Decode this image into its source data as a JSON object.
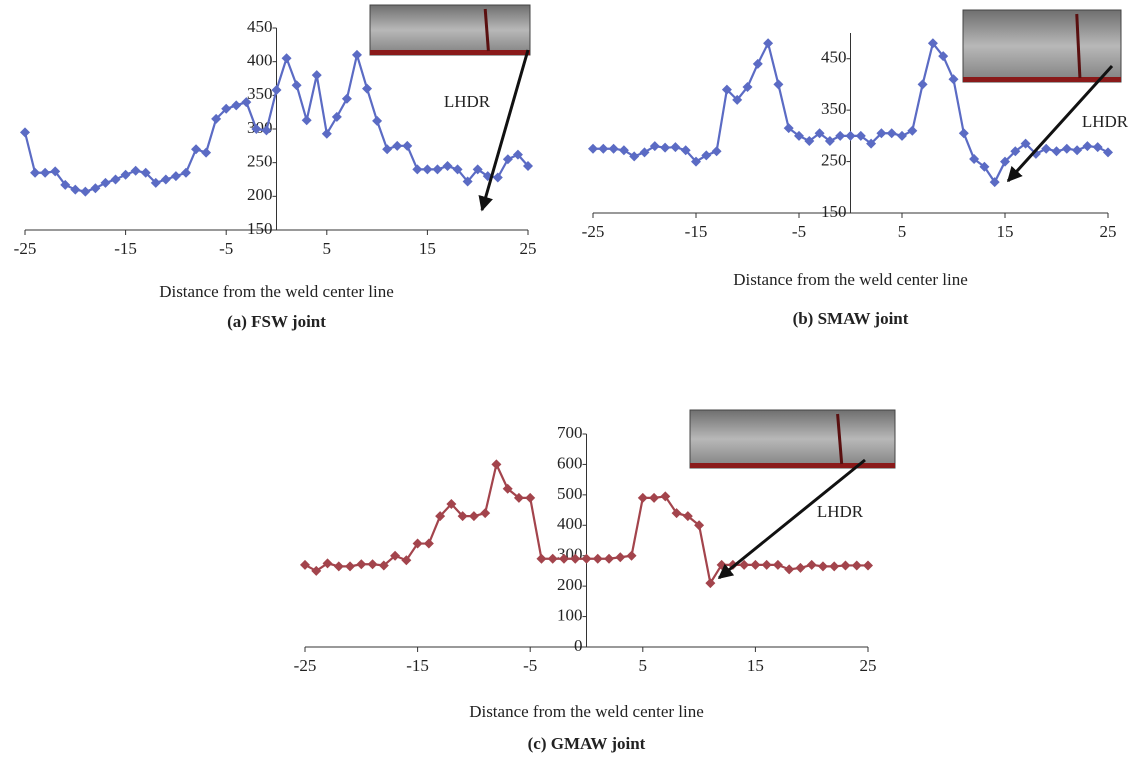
{
  "chart_data": [
    {
      "type": "line",
      "caption": "(a)  FSW joint",
      "xlabel": "Distance from the weld center line",
      "annotation": "LHDR",
      "color": "#5b6bc4",
      "x": [
        -25,
        -24,
        -23,
        -22,
        -21,
        -20,
        -19,
        -18,
        -17,
        -16,
        -15,
        -14,
        -13,
        -12,
        -11,
        -10,
        -9,
        -8,
        -7,
        -6,
        -5,
        -4,
        -3,
        -2,
        -1,
        0,
        1,
        2,
        3,
        4,
        5,
        6,
        7,
        8,
        9,
        10,
        11,
        12,
        13,
        14,
        15,
        16,
        17,
        18,
        19,
        20,
        21,
        22,
        23,
        24,
        25
      ],
      "values": [
        295,
        235,
        235,
        237,
        217,
        210,
        207,
        212,
        220,
        225,
        232,
        238,
        235,
        220,
        225,
        230,
        235,
        270,
        265,
        315,
        330,
        335,
        340,
        300,
        298,
        358,
        405,
        365,
        313,
        380,
        293,
        318,
        345,
        410,
        360,
        312,
        270,
        275,
        275,
        240,
        240,
        240,
        245,
        240,
        222,
        240,
        230,
        228,
        255,
        262,
        245
      ],
      "xlim": [
        -25,
        25
      ],
      "ylim": [
        150,
        450
      ],
      "xticks": [
        -25,
        -15,
        -5,
        5,
        15,
        25
      ],
      "yticks": [
        150,
        200,
        250,
        300,
        350,
        400,
        450
      ]
    },
    {
      "type": "line",
      "caption": "(b)  SMAW joint",
      "xlabel": "Distance from the weld center line",
      "annotation": "LHDR",
      "color": "#5b6bc4",
      "x": [
        -25,
        -24,
        -23,
        -22,
        -21,
        -20,
        -19,
        -18,
        -17,
        -16,
        -15,
        -14,
        -13,
        -12,
        -11,
        -10,
        -9,
        -8,
        -7,
        -6,
        -5,
        -4,
        -3,
        -2,
        -1,
        0,
        1,
        2,
        3,
        4,
        5,
        6,
        7,
        8,
        9,
        10,
        11,
        12,
        13,
        14,
        15,
        16,
        17,
        18,
        19,
        20,
        21,
        22,
        23,
        24,
        25
      ],
      "values": [
        275,
        275,
        275,
        272,
        260,
        268,
        280,
        277,
        278,
        272,
        250,
        262,
        270,
        390,
        370,
        395,
        440,
        480,
        400,
        315,
        300,
        290,
        305,
        290,
        300,
        300,
        300,
        285,
        305,
        305,
        300,
        310,
        400,
        480,
        455,
        410,
        305,
        255,
        240,
        210,
        250,
        270,
        285,
        265,
        275,
        270,
        275,
        272,
        280,
        278,
        268
      ],
      "xlim": [
        -25,
        25
      ],
      "ylim": [
        150,
        500
      ],
      "xticks": [
        -25,
        -15,
        -5,
        5,
        15,
        25
      ],
      "yticks": [
        150,
        250,
        350,
        450
      ]
    },
    {
      "type": "line",
      "caption": "(c)  GMAW joint",
      "xlabel": "Distance from the weld center line",
      "annotation": "LHDR",
      "color": "#a3444c",
      "x": [
        -25,
        -24,
        -23,
        -22,
        -21,
        -20,
        -19,
        -18,
        -17,
        -16,
        -15,
        -14,
        -13,
        -12,
        -11,
        -10,
        -9,
        -8,
        -7,
        -6,
        -5,
        -4,
        -3,
        -2,
        -1,
        0,
        1,
        2,
        3,
        4,
        5,
        6,
        7,
        8,
        9,
        10,
        11,
        12,
        13,
        14,
        15,
        16,
        17,
        18,
        19,
        20,
        21,
        22,
        23,
        24,
        25
      ],
      "values": [
        270,
        250,
        275,
        265,
        265,
        272,
        272,
        268,
        300,
        285,
        340,
        340,
        430,
        470,
        430,
        430,
        440,
        600,
        520,
        490,
        490,
        290,
        290,
        290,
        290,
        290,
        290,
        290,
        295,
        300,
        490,
        490,
        495,
        440,
        430,
        400,
        210,
        270,
        270,
        270,
        270,
        270,
        270,
        255,
        260,
        270,
        265,
        265,
        268,
        268,
        268
      ],
      "xlim": [
        -25,
        25
      ],
      "ylim": [
        0,
        700
      ],
      "xticks": [
        -25,
        -15,
        -5,
        5,
        15,
        25
      ],
      "yticks": [
        0,
        100,
        200,
        300,
        400,
        500,
        600,
        700
      ]
    }
  ]
}
